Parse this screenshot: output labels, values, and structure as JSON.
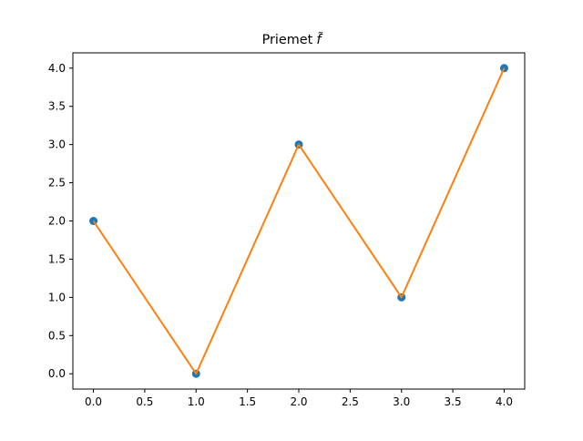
{
  "chart_data": {
    "type": "line",
    "title": "Priemet",
    "title_symbol": "f̃",
    "xlabel": "",
    "ylabel": "",
    "x": [
      0,
      1,
      2,
      3,
      4
    ],
    "series": [
      {
        "kind": "scatter",
        "values": [
          2,
          0,
          3,
          1,
          4
        ],
        "color": "#1f77b4"
      },
      {
        "kind": "line",
        "values": [
          2,
          0,
          3,
          1,
          4
        ],
        "color": "#ff7f0e"
      }
    ],
    "xlim": [
      -0.2,
      4.2
    ],
    "ylim": [
      -0.2,
      4.2
    ],
    "xticks": [
      "0.0",
      "0.5",
      "1.0",
      "1.5",
      "2.0",
      "2.5",
      "3.0",
      "3.5",
      "4.0"
    ],
    "xtick_values": [
      0,
      0.5,
      1,
      1.5,
      2,
      2.5,
      3,
      3.5,
      4
    ],
    "yticks": [
      "0.0",
      "0.5",
      "1.0",
      "1.5",
      "2.0",
      "2.5",
      "3.0",
      "3.5",
      "4.0"
    ],
    "ytick_values": [
      0,
      0.5,
      1,
      1.5,
      2,
      2.5,
      3,
      3.5,
      4
    ],
    "grid": false,
    "legend": "none"
  }
}
